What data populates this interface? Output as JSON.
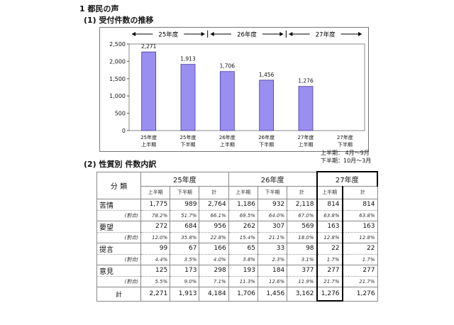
{
  "page": {
    "heading1": "1 都民の声",
    "heading2": "(1) 受付件数の推移",
    "heading3": "(2) 性質別 件数内訳",
    "note1": "上半期： 4月～9月",
    "note2": "下半期：10月～3月"
  },
  "chart_data": {
    "type": "bar",
    "categories": [
      "25年度 上半期",
      "25年度 下半期",
      "26年度 上半期",
      "26年度 下半期",
      "27年度 上半期",
      "27年度 下半期"
    ],
    "category_lines": [
      [
        "25年度",
        "上半期"
      ],
      [
        "25年度",
        "下半期"
      ],
      [
        "26年度",
        "上半期"
      ],
      [
        "26年度",
        "下半期"
      ],
      [
        "27年度",
        "上半期"
      ],
      [
        "27年度",
        "下半期"
      ]
    ],
    "values": [
      2271,
      1913,
      1706,
      1456,
      1276,
      null
    ],
    "value_labels": [
      "2,271",
      "1,913",
      "1,706",
      "1,456",
      "1,276",
      ""
    ],
    "year_bands": [
      "25年度",
      "26年度",
      "27年度"
    ],
    "ylim": [
      0,
      2500
    ],
    "yticks": [
      0,
      500,
      1000,
      1500,
      2000,
      2500
    ],
    "ytick_labels": [
      "0",
      "500",
      "1,000",
      "1,500",
      "2,000",
      "2,500"
    ],
    "bar_color": "#9a8ef0",
    "bar_edge": "#4a3a9a",
    "grid": false,
    "legend": "none"
  },
  "table": {
    "header_label": "分 類",
    "years": [
      "25年度",
      "26年度",
      "27年度"
    ],
    "sub_headers": [
      "上半期",
      "下半期",
      "計"
    ],
    "rows": [
      {
        "label": "苦情",
        "values": [
          "1,775",
          "989",
          "2,764",
          "1,186",
          "932",
          "2,118",
          "814",
          "",
          "814"
        ],
        "pct_label": "(割合)",
        "pct": [
          "78.2%",
          "51.7%",
          "66.1%",
          "69.5%",
          "64.0%",
          "67.0%",
          "63.8%",
          "",
          "63.8%"
        ]
      },
      {
        "label": "要望",
        "values": [
          "272",
          "684",
          "956",
          "262",
          "307",
          "569",
          "163",
          "",
          "163"
        ],
        "pct_label": "(割合)",
        "pct": [
          "12.0%",
          "35.8%",
          "22.8%",
          "15.4%",
          "21.1%",
          "18.0%",
          "12.8%",
          "",
          "12.8%"
        ]
      },
      {
        "label": "提言",
        "values": [
          "99",
          "67",
          "166",
          "65",
          "33",
          "98",
          "22",
          "",
          "22"
        ],
        "pct_label": "(割合)",
        "pct": [
          "4.4%",
          "3.5%",
          "4.0%",
          "3.8%",
          "2.3%",
          "3.1%",
          "1.7%",
          "",
          "1.7%"
        ]
      },
      {
        "label": "意見",
        "values": [
          "125",
          "173",
          "298",
          "193",
          "184",
          "377",
          "277",
          "",
          "277"
        ],
        "pct_label": "(割合)",
        "pct": [
          "5.5%",
          "9.0%",
          "7.1%",
          "11.3%",
          "12.6%",
          "11.9%",
          "21.7%",
          "",
          "21.7%"
        ]
      }
    ],
    "total_label": "計",
    "totals": [
      "2,271",
      "1,913",
      "4,184",
      "1,706",
      "1,456",
      "3,162",
      "1,276",
      "",
      "1,276"
    ]
  }
}
